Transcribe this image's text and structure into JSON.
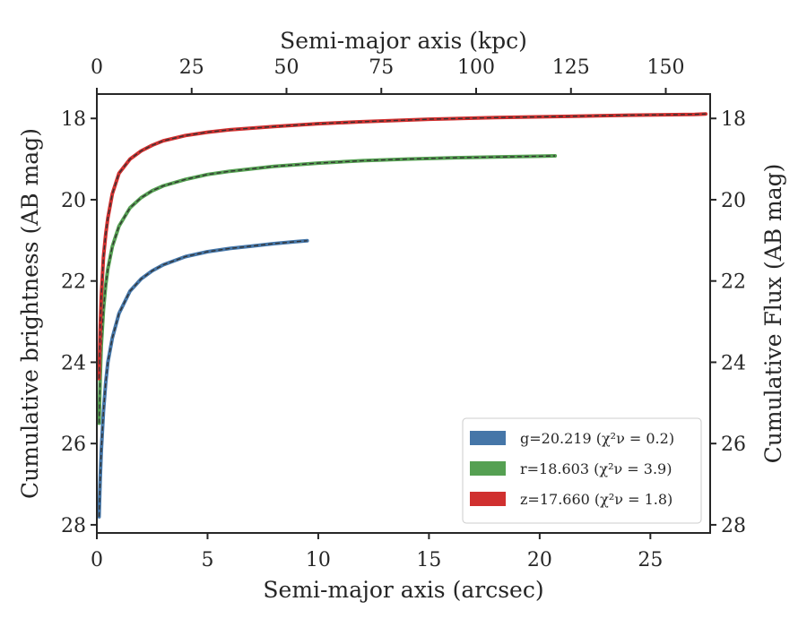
{
  "chart_data": {
    "type": "line",
    "xlabel": "Semi-major axis (arcsec)",
    "ylabel": "Cumulative brightness (AB mag)",
    "top_xlabel": "Semi-major axis (kpc)",
    "right_ylabel": "Cumulative Flux (AB mag)",
    "xlim": [
      0,
      27.7
    ],
    "ylim": [
      28.2,
      17.4
    ],
    "top_xlim": [
      0,
      161.7
    ],
    "x_ticks": [
      "0",
      "5",
      "10",
      "15",
      "20",
      "25"
    ],
    "x_tick_values": [
      0,
      5,
      10,
      15,
      20,
      25
    ],
    "top_x_ticks": [
      "0",
      "25",
      "50",
      "75",
      "100",
      "125",
      "150"
    ],
    "top_x_tick_values": [
      0,
      25,
      50,
      75,
      100,
      125,
      150
    ],
    "y_ticks": [
      "18",
      "20",
      "22",
      "24",
      "26",
      "28"
    ],
    "y_tick_values": [
      18,
      20,
      22,
      24,
      26,
      28
    ],
    "y_inverted": true,
    "legend_position": "lower-right",
    "model_line_style": "dashed",
    "series": [
      {
        "label": "g=20.219 (χ²ν = 0.2)",
        "band": "g",
        "total_mag": 20.219,
        "chi2": 0.2,
        "color": "#4576a8",
        "x": [
          0.1,
          0.15,
          0.2,
          0.3,
          0.4,
          0.5,
          0.7,
          1.0,
          1.5,
          2.0,
          2.5,
          3.0,
          4.0,
          5.0,
          6.0,
          7.0,
          8.0,
          9.0,
          9.5
        ],
        "y": [
          27.8,
          26.9,
          26.2,
          25.2,
          24.5,
          24.0,
          23.4,
          22.8,
          22.25,
          21.95,
          21.75,
          21.6,
          21.4,
          21.28,
          21.2,
          21.14,
          21.08,
          21.03,
          21.01
        ]
      },
      {
        "label": "r=18.603 (χ²ν = 3.9)",
        "band": "r",
        "total_mag": 18.603,
        "chi2": 3.9,
        "color": "#55a052",
        "x": [
          0.1,
          0.15,
          0.2,
          0.3,
          0.4,
          0.5,
          0.7,
          1.0,
          1.5,
          2.0,
          2.5,
          3.0,
          4.0,
          5.0,
          6.0,
          8.0,
          10.0,
          12.0,
          14.0,
          16.0,
          18.0,
          20.0,
          20.7
        ],
        "y": [
          25.5,
          24.4,
          23.6,
          22.7,
          22.1,
          21.7,
          21.15,
          20.65,
          20.2,
          19.95,
          19.78,
          19.66,
          19.5,
          19.38,
          19.3,
          19.18,
          19.1,
          19.04,
          19.0,
          18.97,
          18.95,
          18.93,
          18.92
        ]
      },
      {
        "label": "z=17.660 (χ²ν = 1.8)",
        "band": "z",
        "total_mag": 17.66,
        "chi2": 1.8,
        "color": "#d0302f",
        "x": [
          0.1,
          0.15,
          0.2,
          0.3,
          0.4,
          0.5,
          0.7,
          1.0,
          1.5,
          2.0,
          2.5,
          3.0,
          4.0,
          5.0,
          6.0,
          8.0,
          10.0,
          12.0,
          15.0,
          18.0,
          21.0,
          24.0,
          27.0,
          27.5
        ],
        "y": [
          24.4,
          23.2,
          22.4,
          21.4,
          20.85,
          20.45,
          19.85,
          19.35,
          19.0,
          18.8,
          18.66,
          18.55,
          18.42,
          18.34,
          18.28,
          18.2,
          18.13,
          18.08,
          18.02,
          17.98,
          17.95,
          17.92,
          17.9,
          17.89
        ]
      }
    ]
  }
}
